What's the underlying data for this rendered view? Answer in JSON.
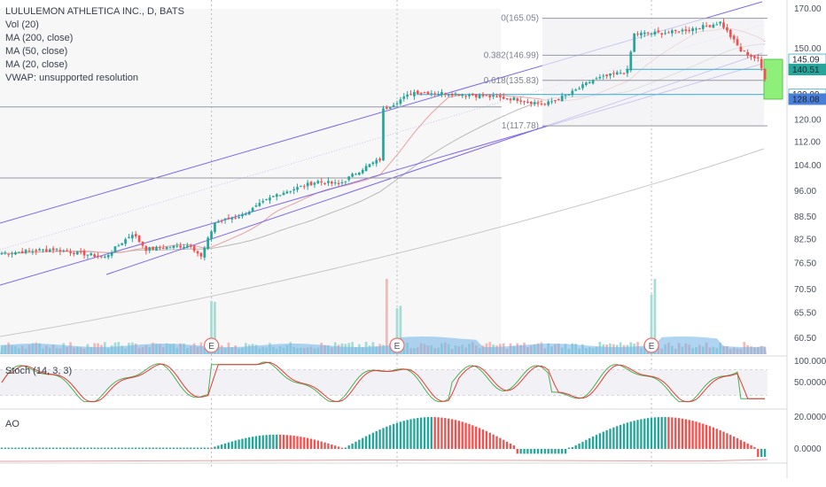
{
  "legend": {
    "title": "LULULEMON ATHLETICA INC., D, BATS",
    "vol": "Vol (20)",
    "ma200": "MA (200, close)",
    "ma50": "MA (50, close)",
    "ma20": "MA (20, close)",
    "vwap": "VWAP: unsupported resolution"
  },
  "stoch_label": "Stoch (14, 3, 3)",
  "ao_label": "AO",
  "colors": {
    "up": "#26a69a",
    "down": "#ef5350",
    "channel": "#7b68ee",
    "ma": "#c8c8c8",
    "ma_fast": "#e8a0a0",
    "hline": "#9598a1",
    "highlight": "#5fb8dc",
    "zone": "#8ef07a"
  },
  "chart_data": [
    {
      "type": "candlestick",
      "ylim": [
        56,
        173
      ],
      "y_ticks": [
        "170.00",
        "150.00",
        "120.00",
        "112.00",
        "104.00",
        "96.00",
        "88.50",
        "82.50",
        "76.50",
        "70.50",
        "65.50",
        "60.50"
      ],
      "price_tags": [
        {
          "label": "145.09",
          "value": 145.09,
          "style": "outline"
        },
        {
          "label": "140.61",
          "value": 140.61,
          "style": "outline"
        },
        {
          "label": "140.51",
          "value": 140.51,
          "style": "green"
        },
        {
          "label": "129.99",
          "value": 129.99,
          "style": "outline"
        },
        {
          "label": "128.08",
          "value": 128.08,
          "style": "blue"
        }
      ],
      "fib_levels": [
        {
          "label": "0(165.05)",
          "value": 165.05
        },
        {
          "label": "0.382(146.99)",
          "value": 146.99
        },
        {
          "label": "0.618(135.83)",
          "value": 135.83
        },
        {
          "label": "1(117.78)",
          "value": 117.78
        }
      ],
      "earnings_markers": [
        "E",
        "E",
        "E"
      ],
      "close_path": [
        [
          0,
          79
        ],
        [
          15,
          80
        ],
        [
          30,
          78
        ],
        [
          38,
          84
        ],
        [
          42,
          80
        ],
        [
          55,
          81
        ],
        [
          58,
          78
        ],
        [
          62,
          87
        ],
        [
          70,
          89
        ],
        [
          80,
          95
        ],
        [
          92,
          99
        ],
        [
          98,
          98
        ],
        [
          105,
          103
        ],
        [
          110,
          106
        ],
        [
          111,
          124
        ],
        [
          120,
          131
        ],
        [
          135,
          130
        ],
        [
          150,
          128
        ],
        [
          158,
          126
        ],
        [
          165,
          130
        ],
        [
          172,
          136
        ],
        [
          182,
          140
        ],
        [
          184,
          157
        ],
        [
          195,
          158
        ],
        [
          205,
          161
        ],
        [
          209,
          163
        ],
        [
          215,
          149
        ],
        [
          220,
          145
        ],
        [
          222,
          137
        ]
      ]
    },
    {
      "type": "line",
      "title": "Stoch (14, 3, 3)",
      "y_ticks": [
        "100.0000",
        "50.0000"
      ]
    },
    {
      "type": "bar",
      "title": "AO",
      "y_ticks": [
        "20.0000",
        "0.0000"
      ]
    }
  ]
}
